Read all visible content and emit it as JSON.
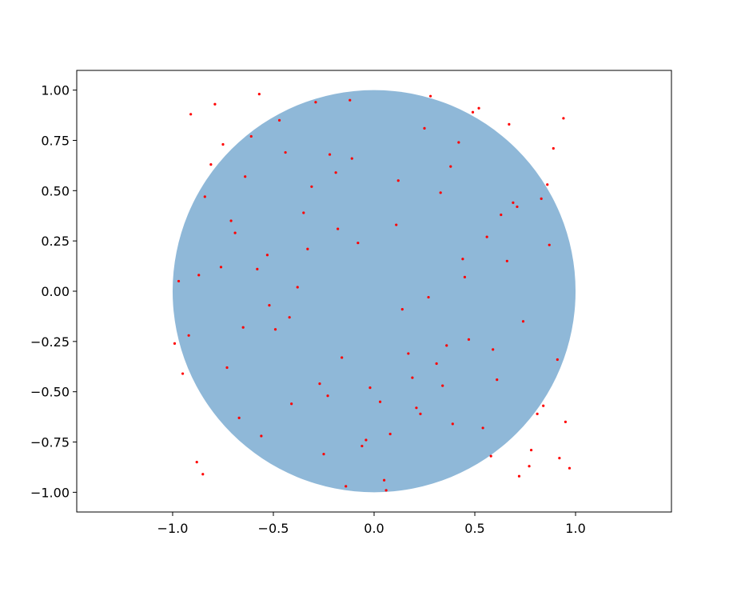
{
  "chart_data": {
    "type": "scatter",
    "xlim": [
      -1.476,
      1.476
    ],
    "ylim": [
      -1.098,
      1.098
    ],
    "xticks": [
      {
        "value": -1.0,
        "label": "−1.0"
      },
      {
        "value": -0.5,
        "label": "−0.5"
      },
      {
        "value": 0,
        "label": "0.0"
      },
      {
        "value": 0.5,
        "label": "0.5"
      },
      {
        "value": 1.0,
        "label": "1.0"
      }
    ],
    "yticks": [
      {
        "value": -1.0,
        "label": "−1.00"
      },
      {
        "value": -0.75,
        "label": "−0.75"
      },
      {
        "value": -0.5,
        "label": "−0.50"
      },
      {
        "value": -0.25,
        "label": "−0.25"
      },
      {
        "value": 0,
        "label": "0.00"
      },
      {
        "value": 0.25,
        "label": "0.25"
      },
      {
        "value": 0.5,
        "label": "0.50"
      },
      {
        "value": 0.75,
        "label": "0.75"
      },
      {
        "value": 1.0,
        "label": "1.00"
      }
    ],
    "circle": {
      "center": [
        0,
        0
      ],
      "radius": 1,
      "color": "#8fb8d8"
    },
    "series": [
      {
        "color": "#ff0000",
        "x": [
          0.12,
          -0.85,
          0.67,
          -0.33,
          0.91,
          -0.56,
          0.28,
          -0.02,
          0.74,
          -0.91,
          0.45,
          -0.67,
          0.05,
          0.83,
          -0.44,
          0.36,
          -0.18,
          0.58,
          -0.76,
          0.21,
          0.97,
          -0.29,
          0.63,
          -0.95,
          0.14,
          -0.61,
          0.39,
          -0.08,
          0.86,
          -0.49,
          0.52,
          -0.23,
          0.78,
          -0.81,
          0.31,
          -0.38,
          0.69,
          -0.14,
          0.94,
          -0.71,
          0.08,
          -0.53,
          0.47,
          -0.97,
          0.25,
          -0.27,
          0.81,
          -0.64,
          0.17,
          -0.88,
          0.56,
          -0.11,
          0.72,
          -0.42,
          0.33,
          -0.79,
          0.89,
          -0.06,
          0.61,
          -0.35,
          0.03,
          -0.58,
          0.42,
          -0.92,
          0.77,
          -0.19,
          0.27,
          -0.73,
          0.95,
          -0.47,
          0.11,
          -0.84,
          0.54,
          -0.25,
          0.66,
          -0.99,
          0.38,
          -0.12,
          0.84,
          -0.52,
          0.19,
          -0.69,
          0.49,
          -0.04,
          0.92,
          -0.31,
          0.59,
          -0.87,
          0.23,
          -0.57,
          0.71,
          -0.16,
          0.44,
          -0.75,
          0.06,
          -0.41,
          0.87,
          -0.65,
          0.34,
          -0.22
        ],
        "values": [
          0.55,
          -0.91,
          0.83,
          0.21,
          -0.34,
          -0.72,
          0.97,
          -0.48,
          -0.15,
          0.88,
          0.07,
          -0.63,
          -0.94,
          0.46,
          0.69,
          -0.27,
          0.31,
          -0.82,
          0.12,
          -0.58,
          -0.88,
          0.94,
          0.38,
          -0.41,
          -0.09,
          0.77,
          -0.66,
          0.24,
          0.53,
          -0.19,
          0.91,
          -0.52,
          -0.79,
          0.63,
          -0.36,
          0.02,
          0.44,
          -0.97,
          0.86,
          0.35,
          -0.71,
          0.18,
          -0.24,
          0.05,
          0.81,
          -0.46,
          -0.61,
          0.57,
          -0.31,
          -0.85,
          0.27,
          0.66,
          -0.92,
          -0.13,
          0.49,
          0.93,
          0.71,
          -0.77,
          -0.44,
          0.39,
          -0.55,
          0.11,
          0.74,
          -0.22,
          -0.87,
          0.59,
          -0.03,
          -0.38,
          -0.65,
          0.85,
          0.33,
          0.47,
          -0.68,
          -0.81,
          0.15,
          -0.26,
          0.62,
          0.95,
          -0.57,
          -0.07,
          -0.43,
          0.29,
          0.89,
          -0.74,
          -0.83,
          0.52,
          -0.29,
          0.08,
          -0.61,
          0.98,
          0.42,
          -0.33,
          0.16,
          0.73,
          -0.99,
          -0.56,
          0.23,
          -0.18,
          -0.47,
          0.68
        ]
      }
    ]
  }
}
